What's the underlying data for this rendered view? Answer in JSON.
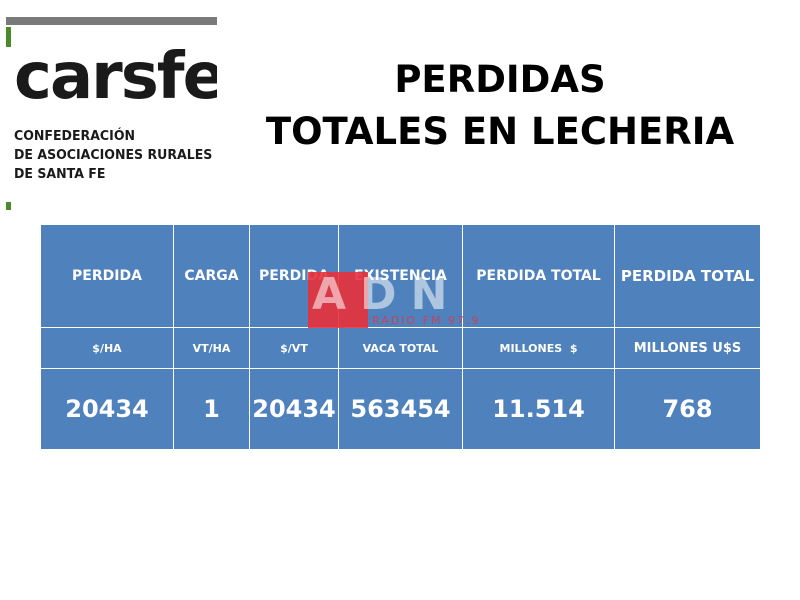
{
  "logo": {
    "wordmark": "carsfe",
    "subtitle_lines": [
      "CONFEDERACIÓN",
      "DE ASOCIACIONES RURALES",
      "DE SANTA FE"
    ]
  },
  "title": {
    "line1": "PERDIDAS",
    "line2": "TOTALES EN LECHERIA"
  },
  "table": {
    "headers": [
      "PERDIDA",
      "CARGA",
      "PERDIDA",
      "EXISTENCIA",
      "PERDIDA TOTAL",
      "PERDIDA TOTAL"
    ],
    "units": [
      "$/HA",
      "VT/HA",
      "$/VT",
      "VACA TOTAL",
      "MILLONES  $",
      "MILLONES U$S"
    ],
    "values": [
      "20434",
      "1",
      "20434",
      "563454",
      "11.514",
      "768"
    ]
  },
  "watermark": {
    "letters": "ADN",
    "sub": "RADIO FM 97.9"
  },
  "colors": {
    "cell_background": "#4f81bd",
    "cell_text": "#ffffff",
    "watermark_red": "#e8303a",
    "logo_green": "#4a8a2a"
  }
}
